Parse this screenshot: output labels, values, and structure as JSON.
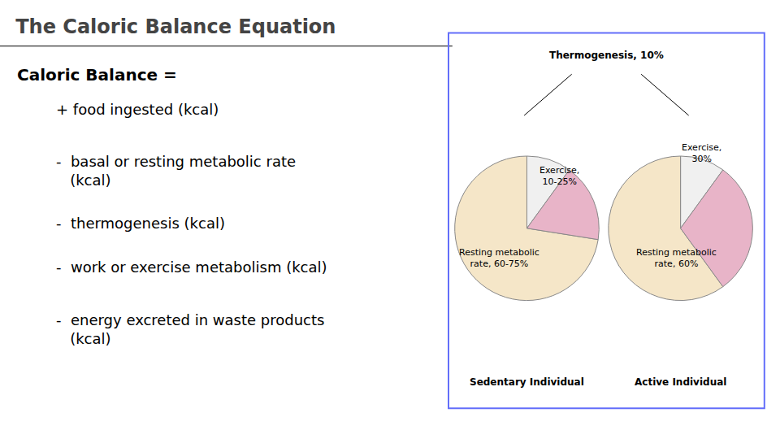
{
  "chart_data": {
    "type": "pie",
    "title": "The Caloric Balance Equation",
    "subtitle": "Caloric Balance =",
    "annotations": [
      "+ food ingested (kcal)",
      "-  basal or resting metabolic rate\n   (kcal)",
      "-  thermogenesis (kcal)",
      "-  work or exercise metabolism (kcal)",
      "-  energy excreted in waste products\n   (kcal)",
      "Thermogenesis, 10%"
    ],
    "colors": [
      "#f0f0f0",
      "#f5e6c8",
      "#e8b4c8"
    ],
    "series": [
      {
        "name": "Sedentary Individual",
        "values": [
          10,
          72.5,
          17.5
        ],
        "annotations": [
          "Exercise,\n10-25%",
          "Resting metabolic\nrate, 60-75%"
        ]
      },
      {
        "name": "Active Individual",
        "values": [
          10,
          60,
          30
        ],
        "annotations": [
          "Exercise,\n30%",
          "Resting metabolic\nrate, 60%"
        ]
      }
    ]
  }
}
